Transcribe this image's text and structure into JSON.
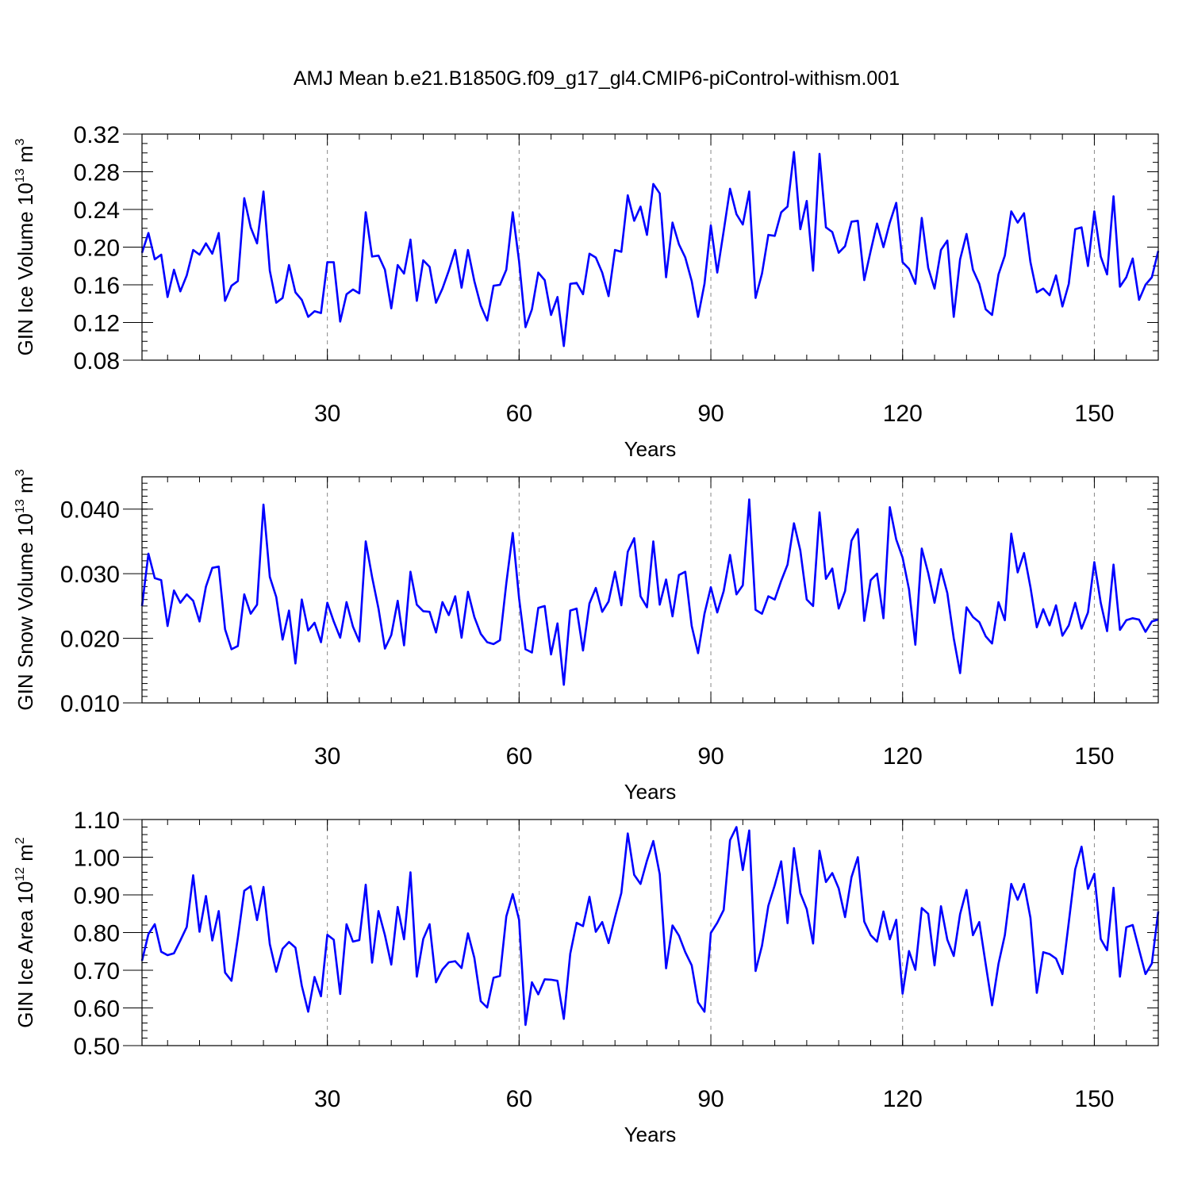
{
  "figure_title": "AMJ Mean b.e21.B1850G.f09_g17_gl4.CMIP6-piControl-withism.001",
  "line_color": "#0000ff",
  "chart_data": [
    {
      "type": "line",
      "title": "",
      "ylabel_main": "GIN Ice Volume 10",
      "ylabel_exp": "13",
      "ylabel_unit": " m",
      "ylabel_unit_exp": "3",
      "xlabel": "Years",
      "xlim": [
        1,
        160
      ],
      "ylim": [
        0.08,
        0.32
      ],
      "xticks": [
        30,
        60,
        90,
        120,
        150
      ],
      "xtick_labels": [
        "30",
        "60",
        "90",
        "120",
        "150"
      ],
      "yticks": [
        0.08,
        0.12,
        0.16,
        0.2,
        0.24,
        0.28,
        0.32
      ],
      "ytick_labels": [
        "0.08",
        "0.12",
        "0.16",
        "0.20",
        "0.24",
        "0.28",
        "0.32"
      ],
      "y_minor_step": 0.01,
      "x_minor_step": 5,
      "grid": "vertical dashed at major x ticks",
      "series": [
        {
          "name": "GIN Ice Volume",
          "x_start": 1,
          "values": [
            0.194,
            0.215,
            0.187,
            0.192,
            0.147,
            0.176,
            0.153,
            0.17,
            0.197,
            0.192,
            0.204,
            0.193,
            0.215,
            0.143,
            0.159,
            0.164,
            0.252,
            0.221,
            0.204,
            0.259,
            0.175,
            0.141,
            0.146,
            0.181,
            0.152,
            0.144,
            0.126,
            0.132,
            0.13,
            0.184,
            0.184,
            0.121,
            0.15,
            0.155,
            0.151,
            0.237,
            0.19,
            0.191,
            0.176,
            0.135,
            0.181,
            0.172,
            0.208,
            0.143,
            0.186,
            0.179,
            0.141,
            0.156,
            0.175,
            0.197,
            0.157,
            0.197,
            0.164,
            0.138,
            0.122,
            0.159,
            0.16,
            0.176,
            0.237,
            0.185,
            0.115,
            0.134,
            0.173,
            0.165,
            0.128,
            0.147,
            0.095,
            0.161,
            0.162,
            0.15,
            0.193,
            0.189,
            0.173,
            0.148,
            0.197,
            0.195,
            0.255,
            0.228,
            0.243,
            0.213,
            0.267,
            0.257,
            0.168,
            0.226,
            0.203,
            0.189,
            0.164,
            0.126,
            0.161,
            0.223,
            0.173,
            0.217,
            0.262,
            0.235,
            0.224,
            0.259,
            0.146,
            0.172,
            0.213,
            0.212,
            0.237,
            0.243,
            0.301,
            0.219,
            0.249,
            0.175,
            0.299,
            0.221,
            0.216,
            0.194,
            0.201,
            0.227,
            0.228,
            0.165,
            0.196,
            0.225,
            0.2,
            0.226,
            0.247,
            0.184,
            0.177,
            0.161,
            0.231,
            0.178,
            0.156,
            0.197,
            0.207,
            0.126,
            0.187,
            0.214,
            0.176,
            0.161,
            0.134,
            0.128,
            0.171,
            0.191,
            0.238,
            0.226,
            0.236,
            0.184,
            0.152,
            0.156,
            0.149,
            0.17,
            0.137,
            0.161,
            0.219,
            0.221,
            0.18,
            0.238,
            0.19,
            0.171,
            0.254,
            0.158,
            0.168,
            0.188,
            0.144,
            0.16,
            0.168,
            0.196
          ]
        }
      ]
    },
    {
      "type": "line",
      "title": "",
      "ylabel_main": "GIN Snow Volume 10",
      "ylabel_exp": "13",
      "ylabel_unit": " m",
      "ylabel_unit_exp": "3",
      "xlabel": "Years",
      "xlim": [
        1,
        160
      ],
      "ylim": [
        0.01,
        0.045
      ],
      "xticks": [
        30,
        60,
        90,
        120,
        150
      ],
      "xtick_labels": [
        "30",
        "60",
        "90",
        "120",
        "150"
      ],
      "yticks": [
        0.01,
        0.02,
        0.03,
        0.04
      ],
      "ytick_labels": [
        "0.010",
        "0.020",
        "0.030",
        "0.040"
      ],
      "y_minor_step": 0.001,
      "x_minor_step": 5,
      "grid": "vertical dashed at major x ticks",
      "series": [
        {
          "name": "GIN Snow Volume",
          "x_start": 1,
          "values": [
            0.025,
            0.0331,
            0.0293,
            0.029,
            0.0219,
            0.0274,
            0.0255,
            0.0268,
            0.0258,
            0.0226,
            0.028,
            0.0309,
            0.0311,
            0.0214,
            0.0183,
            0.0188,
            0.0268,
            0.0238,
            0.0252,
            0.0407,
            0.0295,
            0.0264,
            0.0198,
            0.0243,
            0.0161,
            0.026,
            0.0212,
            0.0224,
            0.0194,
            0.0255,
            0.0226,
            0.0201,
            0.0256,
            0.0218,
            0.0195,
            0.035,
            0.0295,
            0.0246,
            0.0184,
            0.0205,
            0.0258,
            0.0189,
            0.0303,
            0.0252,
            0.0242,
            0.0241,
            0.0209,
            0.0256,
            0.0236,
            0.0265,
            0.0201,
            0.0272,
            0.0233,
            0.0207,
            0.0194,
            0.0191,
            0.0197,
            0.0285,
            0.0363,
            0.0262,
            0.0183,
            0.0178,
            0.0247,
            0.025,
            0.0175,
            0.0223,
            0.0128,
            0.0243,
            0.0246,
            0.0181,
            0.0254,
            0.0278,
            0.0241,
            0.0257,
            0.0303,
            0.0251,
            0.0334,
            0.0355,
            0.0265,
            0.0248,
            0.035,
            0.0252,
            0.0291,
            0.0234,
            0.0298,
            0.0303,
            0.0219,
            0.0177,
            0.0238,
            0.0279,
            0.024,
            0.0273,
            0.0329,
            0.0268,
            0.0282,
            0.0415,
            0.0244,
            0.0238,
            0.0265,
            0.026,
            0.0289,
            0.0314,
            0.0378,
            0.0336,
            0.026,
            0.025,
            0.0395,
            0.0292,
            0.0308,
            0.0246,
            0.0273,
            0.0351,
            0.0369,
            0.0227,
            0.029,
            0.03,
            0.0231,
            0.0403,
            0.0353,
            0.0325,
            0.0276,
            0.019,
            0.0339,
            0.0301,
            0.0255,
            0.0307,
            0.027,
            0.02,
            0.0146,
            0.0248,
            0.0233,
            0.0225,
            0.0203,
            0.0192,
            0.0256,
            0.0228,
            0.0362,
            0.0302,
            0.0332,
            0.0279,
            0.0217,
            0.0245,
            0.022,
            0.0251,
            0.0204,
            0.022,
            0.0255,
            0.0215,
            0.024,
            0.0318,
            0.0255,
            0.0211,
            0.0314,
            0.0213,
            0.0228,
            0.0231,
            0.0229,
            0.021,
            0.0226,
            0.0229
          ]
        }
      ]
    },
    {
      "type": "line",
      "title": "",
      "ylabel_main": "GIN Ice Area 10",
      "ylabel_exp": "12",
      "ylabel_unit": " m",
      "ylabel_unit_exp": "2",
      "xlabel": "Years",
      "xlim": [
        1,
        160
      ],
      "ylim": [
        0.5,
        1.1
      ],
      "xticks": [
        30,
        60,
        90,
        120,
        150
      ],
      "xtick_labels": [
        "30",
        "60",
        "90",
        "120",
        "150"
      ],
      "yticks": [
        0.5,
        0.6,
        0.7,
        0.8,
        0.9,
        1.0,
        1.1
      ],
      "ytick_labels": [
        "0.50",
        "0.60",
        "0.70",
        "0.80",
        "0.90",
        "1.00",
        "1.10"
      ],
      "y_minor_step": 0.02,
      "x_minor_step": 5,
      "grid": "vertical dashed at major x ticks",
      "series": [
        {
          "name": "GIN Ice Area",
          "x_start": 1,
          "values": [
            0.725,
            0.796,
            0.822,
            0.749,
            0.74,
            0.745,
            0.779,
            0.815,
            0.952,
            0.802,
            0.897,
            0.779,
            0.857,
            0.694,
            0.672,
            0.786,
            0.911,
            0.923,
            0.833,
            0.921,
            0.769,
            0.696,
            0.757,
            0.775,
            0.76,
            0.659,
            0.59,
            0.682,
            0.631,
            0.794,
            0.781,
            0.637,
            0.822,
            0.776,
            0.78,
            0.927,
            0.72,
            0.857,
            0.793,
            0.715,
            0.868,
            0.782,
            0.96,
            0.683,
            0.783,
            0.822,
            0.668,
            0.702,
            0.721,
            0.724,
            0.706,
            0.798,
            0.733,
            0.618,
            0.601,
            0.68,
            0.685,
            0.843,
            0.902,
            0.834,
            0.555,
            0.668,
            0.636,
            0.676,
            0.675,
            0.672,
            0.571,
            0.744,
            0.826,
            0.817,
            0.895,
            0.802,
            0.828,
            0.772,
            0.841,
            0.905,
            1.063,
            0.953,
            0.929,
            0.991,
            1.043,
            0.955,
            0.705,
            0.819,
            0.792,
            0.748,
            0.713,
            0.615,
            0.59,
            0.799,
            0.826,
            0.86,
            1.045,
            1.08,
            0.966,
            1.071,
            0.698,
            0.765,
            0.871,
            0.926,
            0.989,
            0.825,
            1.024,
            0.905,
            0.862,
            0.771,
            1.017,
            0.934,
            0.958,
            0.917,
            0.841,
            0.947,
            1.0,
            0.829,
            0.793,
            0.776,
            0.856,
            0.782,
            0.834,
            0.638,
            0.751,
            0.701,
            0.865,
            0.85,
            0.713,
            0.87,
            0.781,
            0.738,
            0.849,
            0.913,
            0.793,
            0.828,
            0.716,
            0.607,
            0.717,
            0.793,
            0.929,
            0.887,
            0.929,
            0.839,
            0.64,
            0.748,
            0.743,
            0.731,
            0.69,
            0.827,
            0.968,
            1.028,
            0.916,
            0.956,
            0.783,
            0.753,
            0.919,
            0.683,
            0.814,
            0.82,
            0.755,
            0.69,
            0.718,
            0.856
          ]
        }
      ]
    }
  ]
}
